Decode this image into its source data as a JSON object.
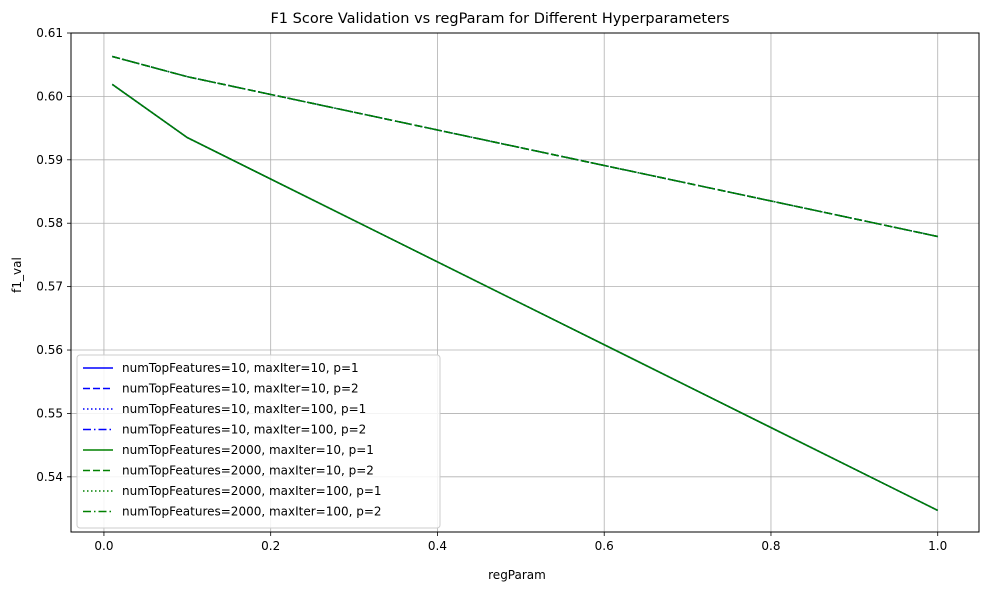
{
  "chart_data": {
    "type": "line",
    "title": "F1 Score Validation vs regParam for Different Hyperparameters",
    "xlabel": "regParam",
    "ylabel": "f1_val",
    "xlim": [
      -0.0395,
      1.0495
    ],
    "ylim": [
      0.5313,
      0.61
    ],
    "xticks": [
      0.0,
      0.2,
      0.4,
      0.6,
      0.8,
      1.0
    ],
    "xtick_labels": [
      "0.0",
      "0.2",
      "0.4",
      "0.6",
      "0.8",
      "1.0"
    ],
    "yticks": [
      0.54,
      0.55,
      0.56,
      0.57,
      0.58,
      0.59,
      0.6,
      0.61
    ],
    "ytick_labels": [
      "0.54",
      "0.55",
      "0.56",
      "0.57",
      "0.58",
      "0.59",
      "0.60",
      "0.61"
    ],
    "grid": true,
    "legend_position": "lower-left",
    "x": [
      0.01,
      0.1,
      1.0
    ],
    "series": [
      {
        "name": "numTopFeatures=10, maxIter=10, p=1",
        "color": "#0000ff",
        "dash": "solid",
        "values": [
          0.6019,
          0.5935,
          0.5347
        ]
      },
      {
        "name": "numTopFeatures=10, maxIter=10, p=2",
        "color": "#0000ff",
        "dash": "dashed",
        "values": [
          0.6063,
          0.6031,
          0.5779
        ]
      },
      {
        "name": "numTopFeatures=10, maxIter=100, p=1",
        "color": "#0000ff",
        "dash": "dotted",
        "values": [
          0.6019,
          0.5935,
          0.5347
        ]
      },
      {
        "name": "numTopFeatures=10, maxIter=100, p=2",
        "color": "#0000ff",
        "dash": "dashdot",
        "values": [
          0.6063,
          0.6031,
          0.5779
        ]
      },
      {
        "name": "numTopFeatures=2000, maxIter=10, p=1",
        "color": "#008000",
        "dash": "solid",
        "values": [
          0.6019,
          0.5935,
          0.5347
        ]
      },
      {
        "name": "numTopFeatures=2000, maxIter=10, p=2",
        "color": "#008000",
        "dash": "dashed",
        "values": [
          0.6063,
          0.6031,
          0.5779
        ]
      },
      {
        "name": "numTopFeatures=2000, maxIter=100, p=1",
        "color": "#008000",
        "dash": "dotted",
        "values": [
          0.6019,
          0.5935,
          0.5347
        ]
      },
      {
        "name": "numTopFeatures=2000, maxIter=100, p=2",
        "color": "#008000",
        "dash": "dashdot",
        "values": [
          0.6063,
          0.6031,
          0.5779
        ]
      }
    ]
  }
}
